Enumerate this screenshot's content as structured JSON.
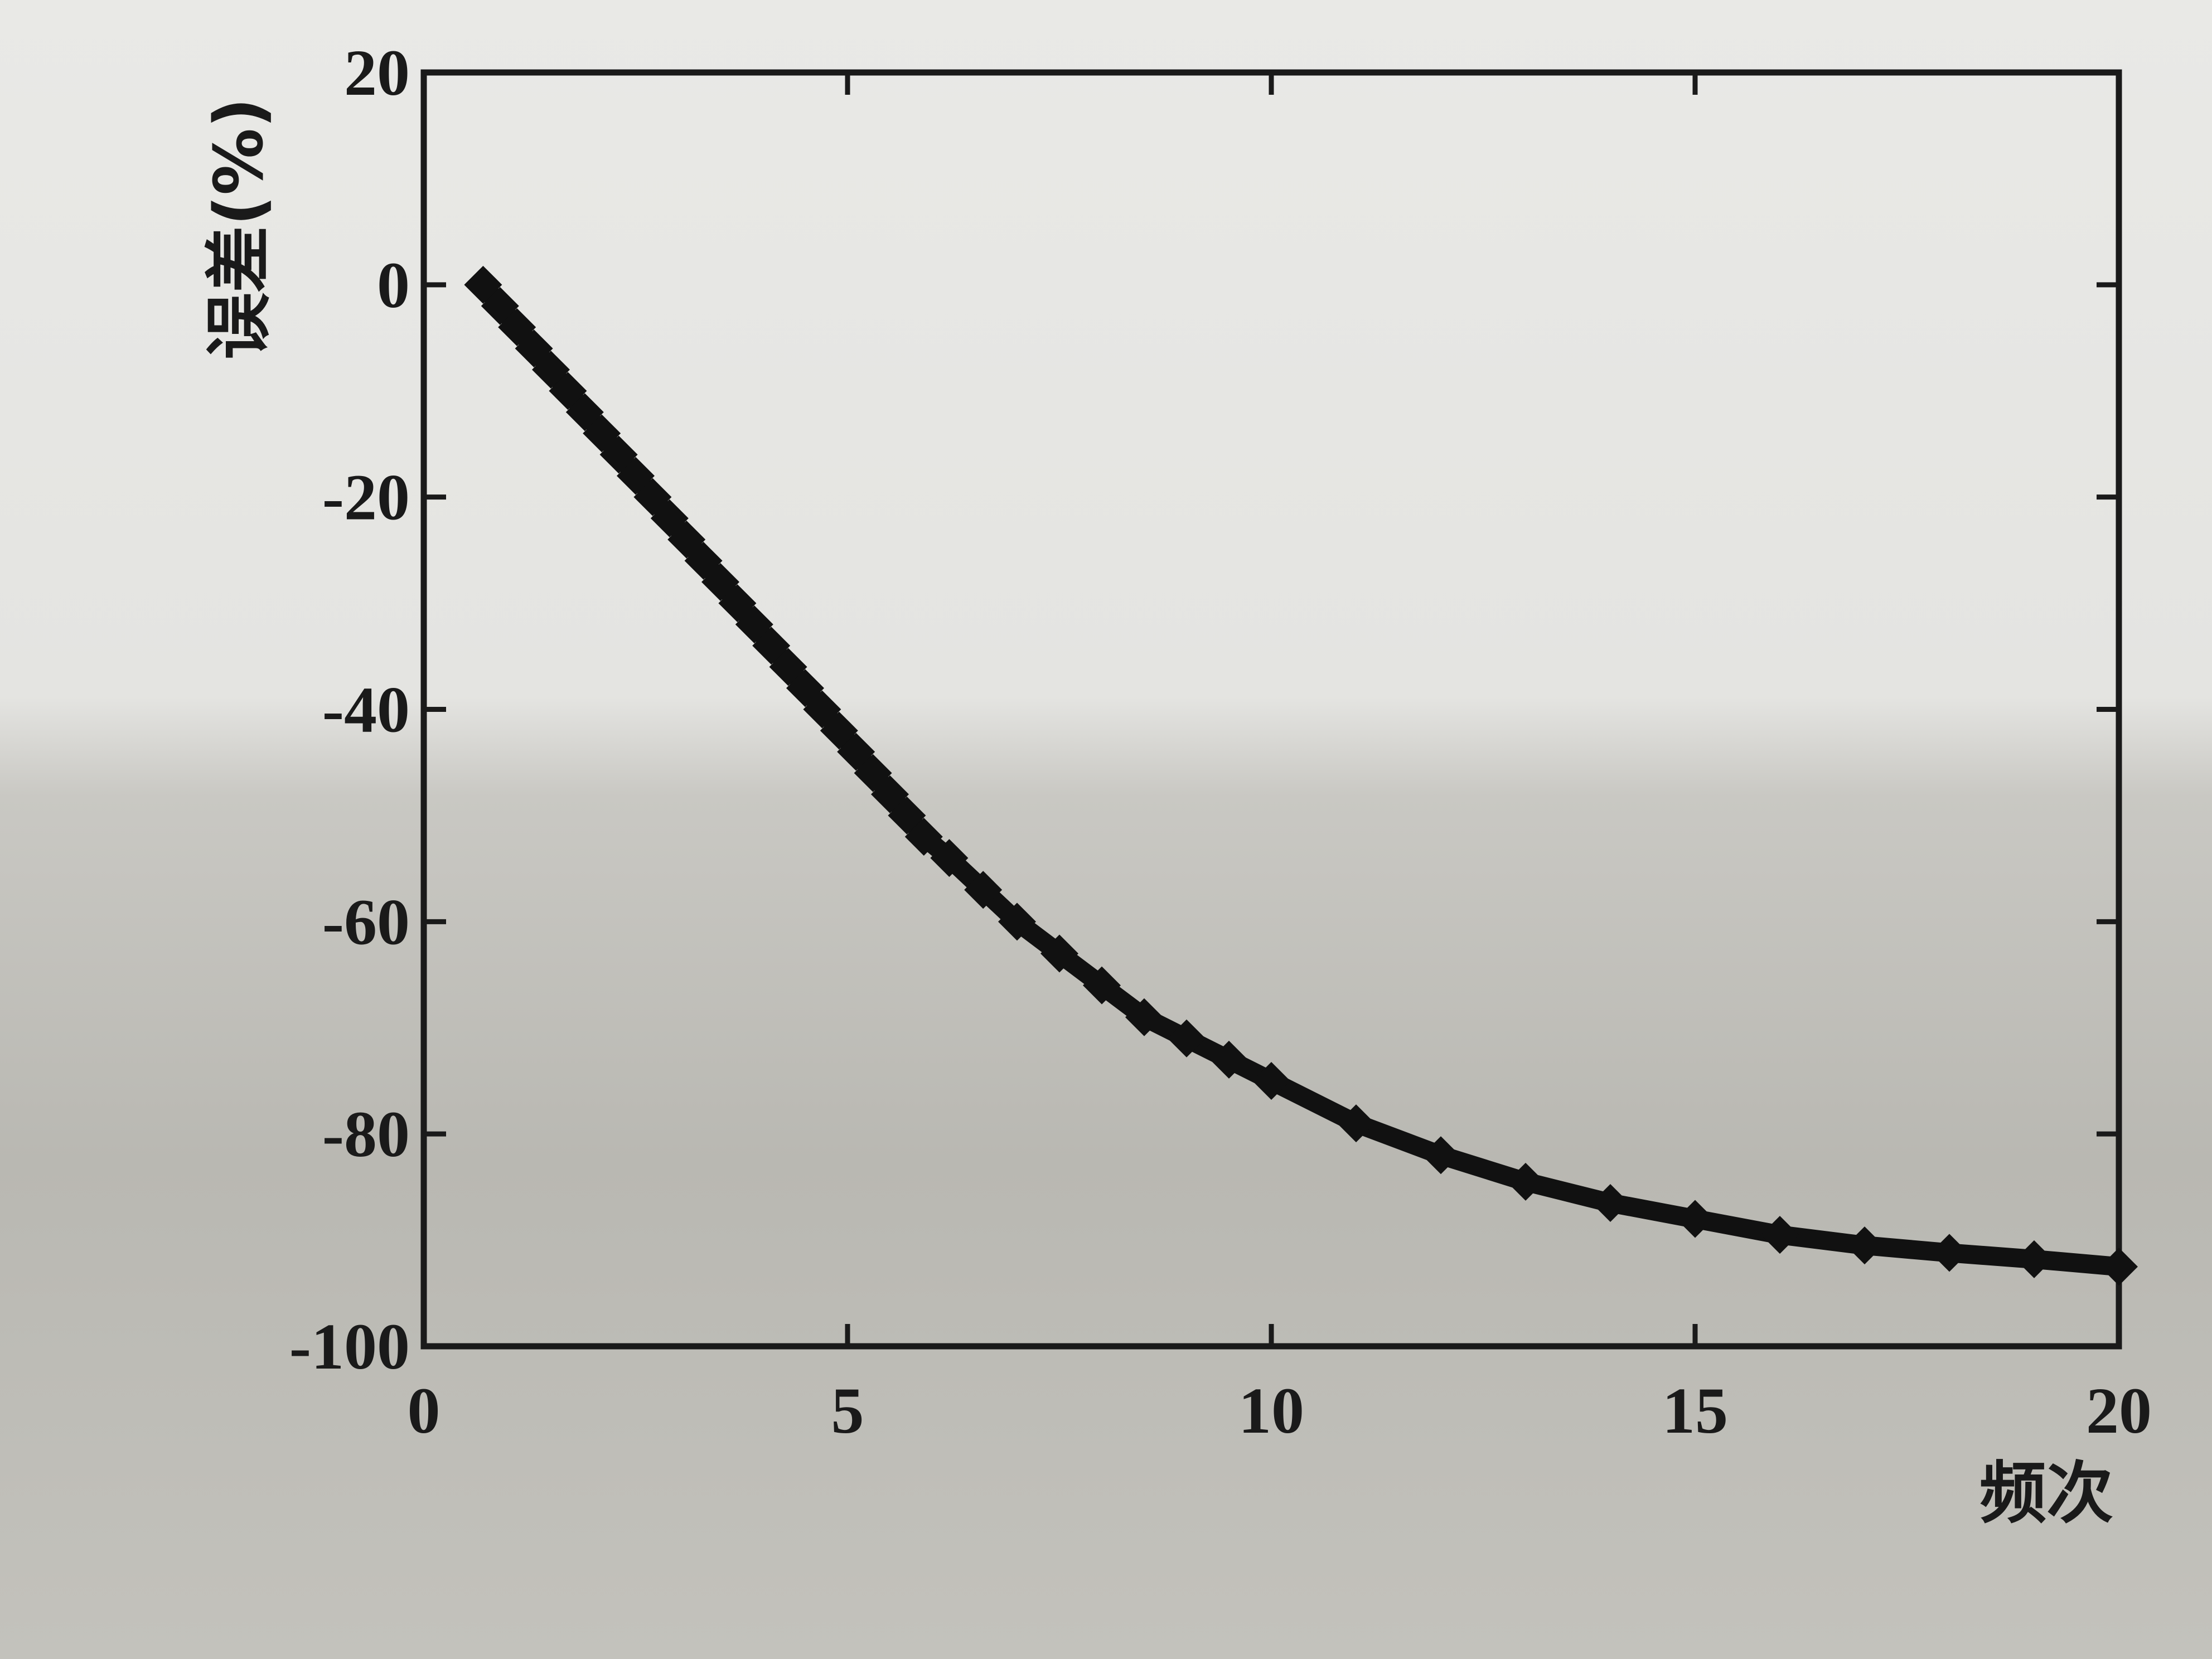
{
  "chart_data": {
    "type": "line",
    "xlabel": "频次",
    "ylabel": "误差(%)",
    "xlim": [
      0,
      20
    ],
    "ylim": [
      -100,
      20
    ],
    "xticks": [
      "0",
      "5",
      "10",
      "15",
      "20"
    ],
    "yticks": [
      "20",
      "0",
      "-20",
      "-40",
      "-60",
      "-80",
      "-100"
    ],
    "grid": false,
    "series": [
      {
        "marker": "diamond",
        "color": "#111111",
        "x": [
          0.7,
          0.9,
          1.1,
          1.3,
          1.5,
          1.7,
          1.9,
          2.1,
          2.3,
          2.5,
          2.7,
          2.9,
          3.1,
          3.3,
          3.5,
          3.7,
          3.9,
          4.1,
          4.3,
          4.5,
          4.7,
          4.9,
          5.1,
          5.3,
          5.5,
          5.7,
          5.9,
          6.2,
          6.6,
          7.0,
          7.5,
          8.0,
          8.5,
          9.0,
          9.5,
          10.0,
          11.0,
          12.0,
          13.0,
          14.0,
          15.0,
          16.0,
          17.0,
          18.0,
          19.0,
          20.0
        ],
        "y": [
          0,
          -2,
          -4,
          -6,
          -8,
          -10,
          -12,
          -14,
          -16,
          -18,
          -20,
          -22,
          -24,
          -26,
          -28,
          -30,
          -32,
          -34,
          -36,
          -38,
          -40,
          -42,
          -44,
          -46,
          -48,
          -50,
          -52,
          -54,
          -57,
          -60,
          -63,
          -66,
          -69,
          -71,
          -73,
          -75,
          -79,
          -82,
          -84.5,
          -86.5,
          -88,
          -89.5,
          -90.5,
          -91.2,
          -91.8,
          -92.5
        ]
      }
    ]
  }
}
